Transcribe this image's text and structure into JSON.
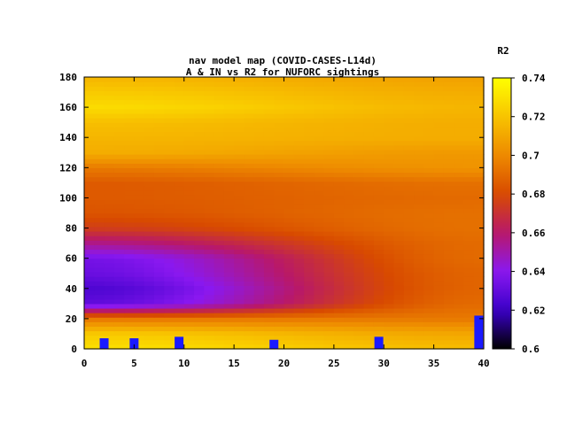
{
  "chart_data": {
    "type": "heatmap",
    "title": "nav model map (COVID-CASES-L14d)",
    "subtitle": "A & IN vs R2 for NUFORC sightings",
    "colorbar_label": "R2",
    "xlim": [
      0,
      40
    ],
    "ylim": [
      0,
      180
    ],
    "zlim": [
      0.6,
      0.74
    ],
    "x_ticks": [
      "0",
      "5",
      "10",
      "15",
      "20",
      "25",
      "30",
      "35",
      "40"
    ],
    "y_ticks": [
      "0",
      "20",
      "40",
      "60",
      "80",
      "100",
      "120",
      "140",
      "160",
      "180"
    ],
    "colorbar_ticks": [
      "0.6",
      "0.62",
      "0.64",
      "0.66",
      "0.68",
      "0.7",
      "0.72",
      "0.74"
    ],
    "palette": [
      "#000000",
      "#3a00c8",
      "#8a18f0",
      "#b8186a",
      "#d84a00",
      "#ee8a00",
      "#f8c400",
      "#ffff00"
    ],
    "grid": false,
    "r2_by_IN": {
      "IN": [
        0,
        10,
        20,
        30,
        40,
        50,
        60,
        70,
        80,
        90,
        100,
        110,
        120,
        130,
        140,
        150,
        160,
        170,
        180
      ],
      "left_A0": [
        0.73,
        0.722,
        0.695,
        0.63,
        0.625,
        0.632,
        0.635,
        0.655,
        0.675,
        0.683,
        0.685,
        0.685,
        0.695,
        0.712,
        0.715,
        0.718,
        0.728,
        0.722,
        0.715
      ],
      "right_A40": [
        0.718,
        0.71,
        0.695,
        0.69,
        0.688,
        0.688,
        0.69,
        0.69,
        0.692,
        0.692,
        0.69,
        0.692,
        0.703,
        0.705,
        0.712,
        0.712,
        0.715,
        0.712,
        0.708
      ]
    },
    "markers": [
      {
        "A": 2,
        "IN_low": 0,
        "IN_high": 7
      },
      {
        "A": 5,
        "IN_low": 0,
        "IN_high": 7
      },
      {
        "A": 9.5,
        "IN_low": 0,
        "IN_high": 8
      },
      {
        "A": 19,
        "IN_low": 0,
        "IN_high": 6
      },
      {
        "A": 29.5,
        "IN_low": 0,
        "IN_high": 8
      },
      {
        "A": 39.5,
        "IN_low": 0,
        "IN_high": 22
      }
    ],
    "marker_color": "#1a1aff"
  }
}
